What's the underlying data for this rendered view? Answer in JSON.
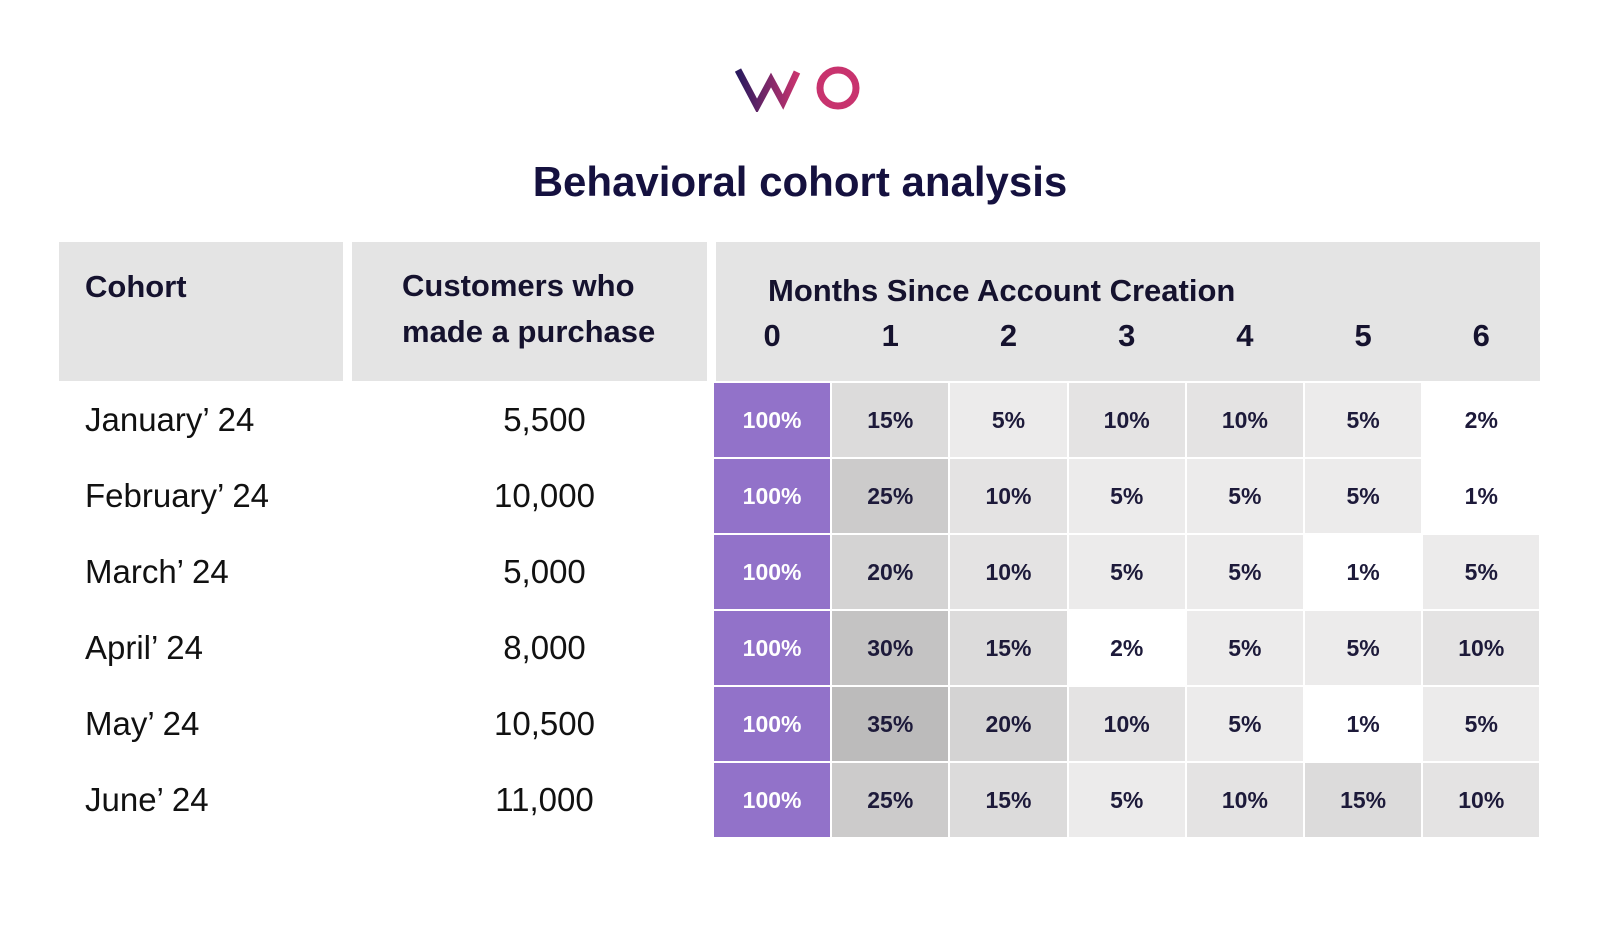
{
  "title": "Behavioral cohort analysis",
  "table": {
    "headers": {
      "cohort": "Cohort",
      "customers": "Customers who made a purchase",
      "months": "Months Since Account Creation"
    },
    "month_numbers": [
      "0",
      "1",
      "2",
      "3",
      "4",
      "5",
      "6"
    ],
    "rows": [
      {
        "cohort": "January’ 24",
        "customers": "5,500",
        "retention": [
          "100%",
          "15%",
          "5%",
          "10%",
          "10%",
          "5%",
          "2%"
        ]
      },
      {
        "cohort": "February’ 24",
        "customers": "10,000",
        "retention": [
          "100%",
          "25%",
          "10%",
          "5%",
          "5%",
          "5%",
          "1%"
        ]
      },
      {
        "cohort": "March’ 24",
        "customers": "5,000",
        "retention": [
          "100%",
          "20%",
          "10%",
          "5%",
          "5%",
          "1%",
          "5%"
        ]
      },
      {
        "cohort": "April’ 24",
        "customers": "8,000",
        "retention": [
          "100%",
          "30%",
          "15%",
          "2%",
          "5%",
          "5%",
          "10%"
        ]
      },
      {
        "cohort": "May’ 24",
        "customers": "10,500",
        "retention": [
          "100%",
          "35%",
          "20%",
          "10%",
          "5%",
          "1%",
          "5%"
        ]
      },
      {
        "cohort": "June’ 24",
        "customers": "11,000",
        "retention": [
          "100%",
          "25%",
          "15%",
          "5%",
          "10%",
          "15%",
          "10%"
        ]
      }
    ]
  }
}
